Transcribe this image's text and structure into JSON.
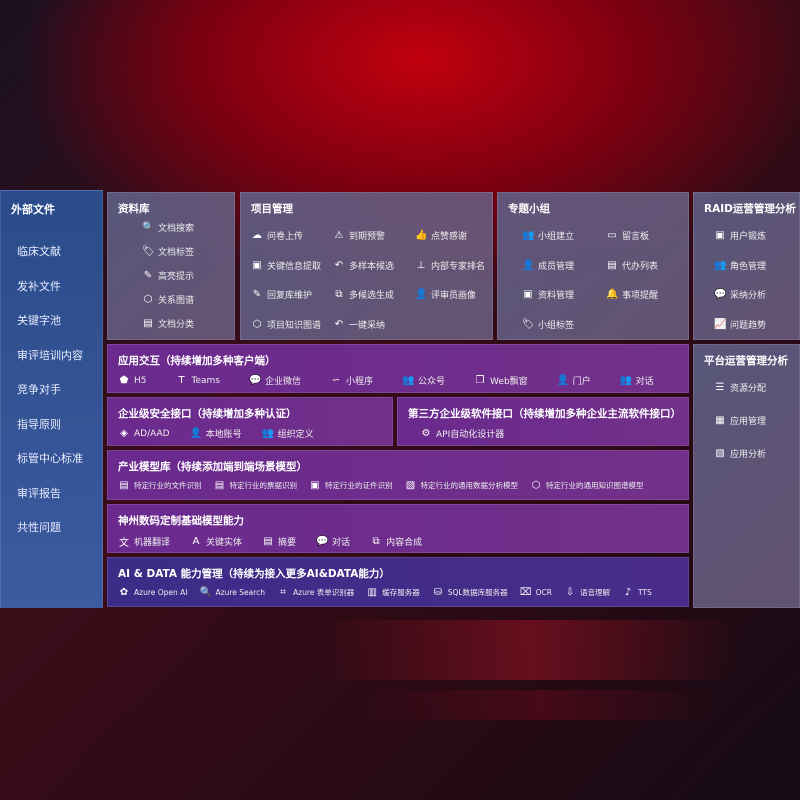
{
  "sidebar": {
    "title": "外部文件",
    "items": [
      "临床文献",
      "发补文件",
      "关键字池",
      "审评培训内容",
      "竞争对手",
      "指导原则",
      "标管中心标准",
      "审评报告",
      "共性问题"
    ]
  },
  "library": {
    "title": "资料库",
    "items": [
      {
        "icon": "doc-search-icon",
        "g": "🔍",
        "label": "文档搜索"
      },
      {
        "icon": "tag-icon",
        "g": "🏷",
        "label": "文档标签"
      },
      {
        "icon": "pen-icon",
        "g": "✎",
        "label": "高亮提示"
      },
      {
        "icon": "graph-icon",
        "g": "⬡",
        "label": "关系图谱"
      },
      {
        "icon": "doc-list-icon",
        "g": "▤",
        "label": "文档分类"
      }
    ]
  },
  "project": {
    "title": "项目管理",
    "items": [
      {
        "icon": "cloud-upload-icon",
        "g": "☁",
        "label": "问卷上传"
      },
      {
        "icon": "alarm-icon",
        "g": "⚠",
        "label": "到期预警"
      },
      {
        "icon": "thumbs-up-icon",
        "g": "👍",
        "label": "点赞感谢"
      },
      {
        "icon": "window-icon",
        "g": "▣",
        "label": "关键信息提取"
      },
      {
        "icon": "reply-icon",
        "g": "↶",
        "label": "多样本候选"
      },
      {
        "icon": "rank-icon",
        "g": "⊥",
        "label": "内部专家排名"
      },
      {
        "icon": "edit-icon",
        "g": "✎",
        "label": "回复库维护"
      },
      {
        "icon": "puzzle-icon",
        "g": "⧉",
        "label": "多候选生成"
      },
      {
        "icon": "person-icon",
        "g": "👤",
        "label": "评审员画像"
      },
      {
        "icon": "graph-icon",
        "g": "⬡",
        "label": "项目知识图谱"
      },
      {
        "icon": "reply-icon",
        "g": "↶",
        "label": "一键采纳"
      }
    ]
  },
  "group": {
    "title": "专题小组",
    "items": [
      {
        "icon": "users-icon",
        "g": "👥",
        "label": "小组建立"
      },
      {
        "icon": "bbs-icon",
        "g": "▭",
        "label": "留言板"
      },
      {
        "icon": "user-add-icon",
        "g": "👤",
        "label": "成员管理"
      },
      {
        "icon": "clipboard-icon",
        "g": "▤",
        "label": "代办列表"
      },
      {
        "icon": "folder-icon",
        "g": "▣",
        "label": "资料管理"
      },
      {
        "icon": "bell-icon",
        "g": "🔔",
        "label": "事项提醒"
      },
      {
        "icon": "tag-icon",
        "g": "🏷",
        "label": "小组标签"
      }
    ]
  },
  "raid": {
    "title": "RAID运营管理分析",
    "items": [
      {
        "icon": "id-card-icon",
        "g": "▣",
        "label": "用户锻炼"
      },
      {
        "icon": "users-icon",
        "g": "👥",
        "label": "角色管理"
      },
      {
        "icon": "qa-icon",
        "g": "💬",
        "label": "采纳分析"
      },
      {
        "icon": "trend-icon",
        "g": "📈",
        "label": "问题趋势"
      }
    ]
  },
  "platform": {
    "title": "平台运营管理分析",
    "items": [
      {
        "icon": "checklist-icon",
        "g": "☰",
        "label": "资源分配"
      },
      {
        "icon": "apps-icon",
        "g": "▦",
        "label": "应用管理"
      },
      {
        "icon": "analysis-icon",
        "g": "▧",
        "label": "应用分析"
      }
    ]
  },
  "app": {
    "title": "应用交互（持续增加多种客户端）",
    "items": [
      {
        "icon": "html5-icon",
        "g": "⬟",
        "label": "H5"
      },
      {
        "icon": "teams-icon",
        "g": "T",
        "label": "Teams"
      },
      {
        "icon": "wechat-icon",
        "g": "💬",
        "label": "企业微信"
      },
      {
        "icon": "mini-program-icon",
        "g": "∽",
        "label": "小程序"
      },
      {
        "icon": "users-icon",
        "g": "👥",
        "label": "公众号"
      },
      {
        "icon": "window-icon",
        "g": "❐",
        "label": "Web飘窗"
      },
      {
        "icon": "portal-icon",
        "g": "👤",
        "label": "门户"
      },
      {
        "icon": "chat-icon",
        "g": "👥",
        "label": "对话"
      }
    ]
  },
  "security": {
    "title": "企业级安全接口（持续增加多种认证）",
    "items": [
      {
        "icon": "diamond-icon",
        "g": "◈",
        "label": "AD/AAD"
      },
      {
        "icon": "user-lock-icon",
        "g": "👤",
        "label": "本地账号"
      },
      {
        "icon": "org-icon",
        "g": "👥",
        "label": "组织定义"
      }
    ]
  },
  "third": {
    "title": "第三方企业级软件接口（持续增加多种企业主流软件接口）",
    "items": [
      {
        "icon": "gear-icon",
        "g": "⚙",
        "label": "API自动化设计器"
      }
    ]
  },
  "industry": {
    "title": "产业模型库（持续添加端到端场景模型）",
    "items": [
      {
        "icon": "doc-icon",
        "g": "▤",
        "label": "特定行业的文件识别"
      },
      {
        "icon": "receipt-icon",
        "g": "▤",
        "label": "特定行业的票据识别"
      },
      {
        "icon": "id-card-icon",
        "g": "▣",
        "label": "特定行业的证件识别"
      },
      {
        "icon": "chart-icon",
        "g": "▧",
        "label": "特定行业的通用数据分析模型"
      },
      {
        "icon": "graph-icon",
        "g": "⬡",
        "label": "特定行业的通用知识图谱模型"
      }
    ]
  },
  "base": {
    "title": "神州数码定制基础模型能力",
    "items": [
      {
        "icon": "translate-icon",
        "g": "文",
        "label": "机器翻译"
      },
      {
        "icon": "entity-icon",
        "g": "A",
        "label": "关键实体"
      },
      {
        "icon": "summary-icon",
        "g": "▤",
        "label": "摘要"
      },
      {
        "icon": "chat-icon",
        "g": "💬",
        "label": "对话"
      },
      {
        "icon": "puzzle-icon",
        "g": "⧉",
        "label": "内容合成"
      }
    ]
  },
  "ai": {
    "title": "AI & DATA 能力管理（持续为接入更多AI&DATA能力）",
    "items": [
      {
        "icon": "openai-icon",
        "g": "✿",
        "label": "Azure Open AI"
      },
      {
        "icon": "search-doc-icon",
        "g": "🔍",
        "label": "Azure Search"
      },
      {
        "icon": "form-icon",
        "g": "⌗",
        "label": "Azure 表单识别器"
      },
      {
        "icon": "cache-icon",
        "g": "▥",
        "label": "缓存服务器"
      },
      {
        "icon": "database-icon",
        "g": "⛁",
        "label": "SQL数据库服务器"
      },
      {
        "icon": "ocr-icon",
        "g": "⌧",
        "label": "OCR"
      },
      {
        "icon": "speech-icon",
        "g": "⇩",
        "label": "语音理解"
      },
      {
        "icon": "tts-icon",
        "g": "♪",
        "label": "TTS"
      }
    ]
  }
}
